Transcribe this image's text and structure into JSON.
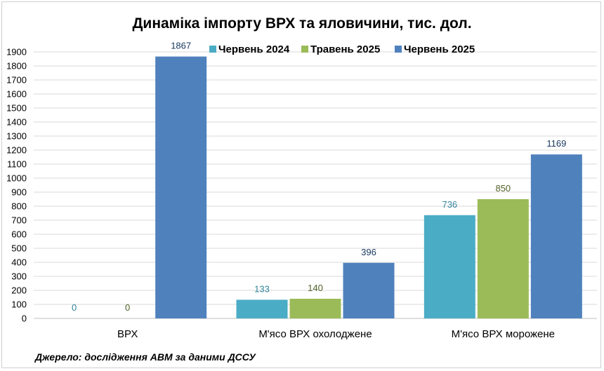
{
  "chart_data": {
    "type": "bar",
    "title": "Динаміка імпорту ВРХ та яловичини, тис. дол.",
    "categories": [
      "ВРХ",
      "М'ясо ВРХ охолоджене",
      "М'ясо ВРХ морожене"
    ],
    "series": [
      {
        "name": "Червень 2024",
        "color": "#4bacc6",
        "label_color": "#31849b",
        "values": [
          0,
          133,
          736
        ]
      },
      {
        "name": "Травень 2025",
        "color": "#9bbb59",
        "label_color": "#4f6228",
        "values": [
          0,
          140,
          850
        ]
      },
      {
        "name": "Червень 2025",
        "color": "#4f81bd",
        "label_color": "#17375e",
        "values": [
          null,
          396,
          1169
        ],
        "top_label_first": "1867",
        "first_value": 1867
      }
    ],
    "ylim": [
      0,
      1900
    ],
    "ytick_step": 100,
    "grid": true,
    "legend_position": "top-right",
    "source": "Джерело: дослідження АВМ за даними ДССУ"
  }
}
